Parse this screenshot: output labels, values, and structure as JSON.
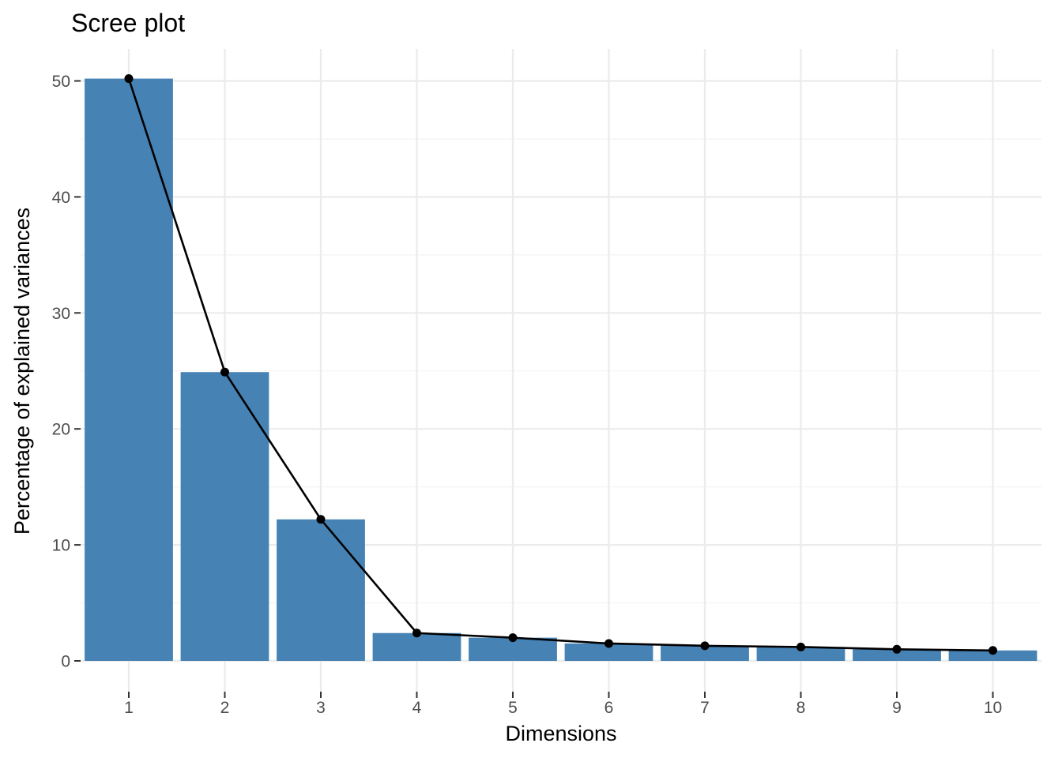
{
  "chart_data": {
    "type": "bar",
    "title": "Scree plot",
    "xlabel": "Dimensions",
    "ylabel": "Percentage of explained variances",
    "categories": [
      "1",
      "2",
      "3",
      "4",
      "5",
      "6",
      "7",
      "8",
      "9",
      "10"
    ],
    "values": [
      50.2,
      24.9,
      12.2,
      2.4,
      2.0,
      1.5,
      1.3,
      1.2,
      1.0,
      0.9
    ],
    "overlay": {
      "type": "line",
      "points": true
    },
    "ylim": [
      0,
      52.7
    ],
    "yticks": [
      0,
      10,
      20,
      30,
      40,
      50
    ],
    "grid": true,
    "legend": "none",
    "colors": {
      "bar": "#4682b4",
      "line": "#000000",
      "grid": "#ebebeb"
    }
  }
}
